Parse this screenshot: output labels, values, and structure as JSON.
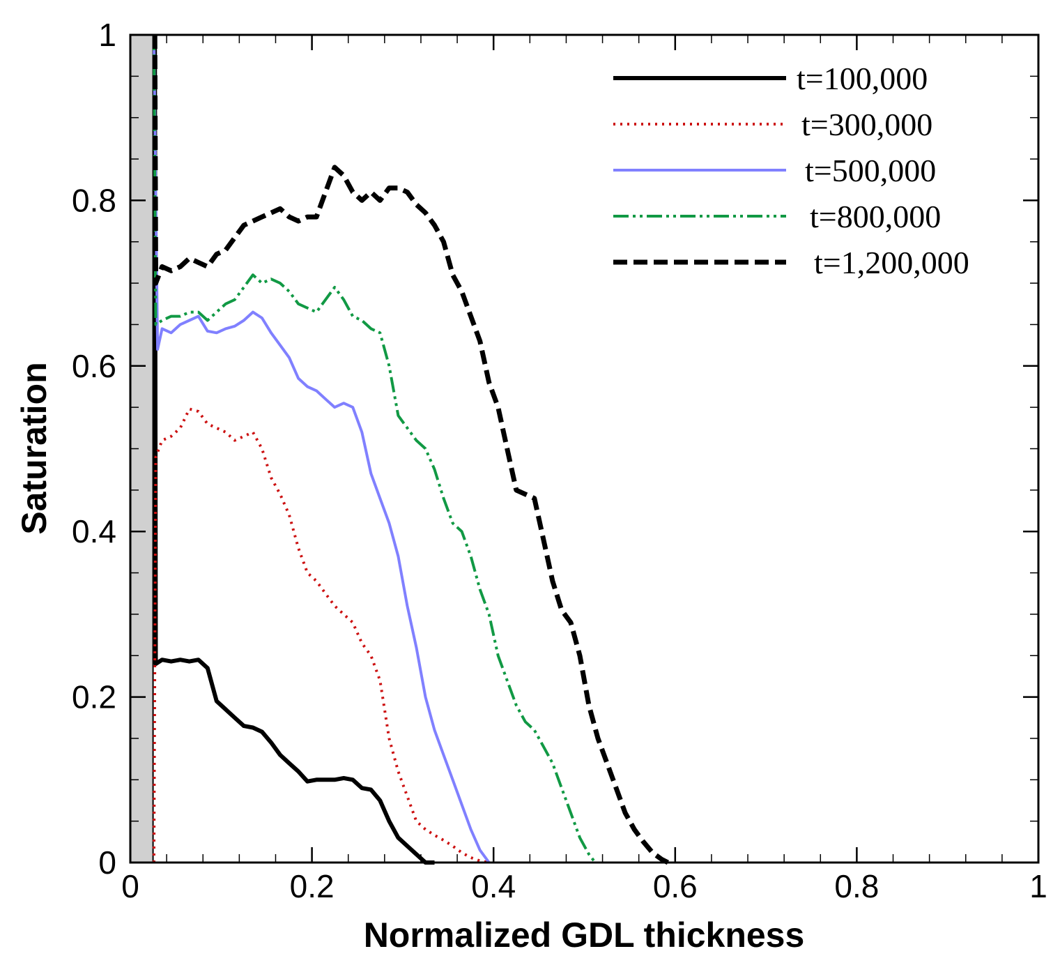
{
  "chart_data": {
    "type": "line",
    "title": "",
    "xlabel": "Normalized GDL thickness",
    "ylabel": "Saturation",
    "xlim": [
      0,
      1
    ],
    "ylim": [
      0,
      1
    ],
    "x_ticks": [
      "0",
      "0.2",
      "0.4",
      "0.6",
      "0.8",
      "1"
    ],
    "y_ticks": [
      "0",
      "0.2",
      "0.4",
      "0.6",
      "0.8",
      "1"
    ],
    "shaded_region": {
      "x_from": 0.0,
      "x_to": 0.025,
      "color": "#d0d0d0"
    },
    "legend_position": "top-right",
    "series": [
      {
        "name": "t=100,000",
        "color": "#000000",
        "style": "solid",
        "x": [
          0.027,
          0.028,
          0.035,
          0.045,
          0.055,
          0.065,
          0.075,
          0.085,
          0.095,
          0.105,
          0.115,
          0.125,
          0.135,
          0.145,
          0.155,
          0.165,
          0.175,
          0.185,
          0.195,
          0.205,
          0.215,
          0.225,
          0.235,
          0.245,
          0.255,
          0.265,
          0.275,
          0.285,
          0.295,
          0.305,
          0.315,
          0.325,
          0.335
        ],
        "y": [
          1.0,
          0.24,
          0.245,
          0.243,
          0.245,
          0.243,
          0.245,
          0.235,
          0.195,
          0.185,
          0.175,
          0.165,
          0.163,
          0.158,
          0.145,
          0.13,
          0.12,
          0.11,
          0.098,
          0.1,
          0.1,
          0.1,
          0.102,
          0.1,
          0.09,
          0.088,
          0.075,
          0.05,
          0.03,
          0.02,
          0.01,
          0.0,
          0.0
        ]
      },
      {
        "name": "t=300,000",
        "color": "#cc1111",
        "style": "dotted",
        "x": [
          0.026,
          0.028,
          0.035,
          0.045,
          0.055,
          0.065,
          0.075,
          0.085,
          0.095,
          0.105,
          0.115,
          0.125,
          0.135,
          0.145,
          0.155,
          0.165,
          0.175,
          0.185,
          0.195,
          0.205,
          0.215,
          0.225,
          0.235,
          0.245,
          0.255,
          0.265,
          0.275,
          0.285,
          0.295,
          0.305,
          0.315,
          0.325,
          0.335,
          0.345,
          0.355,
          0.365,
          0.375,
          0.385,
          0.395
        ],
        "y": [
          0.0,
          0.49,
          0.51,
          0.515,
          0.525,
          0.548,
          0.545,
          0.53,
          0.525,
          0.52,
          0.51,
          0.515,
          0.52,
          0.5,
          0.465,
          0.445,
          0.42,
          0.38,
          0.35,
          0.34,
          0.325,
          0.31,
          0.3,
          0.29,
          0.265,
          0.25,
          0.22,
          0.15,
          0.11,
          0.08,
          0.05,
          0.04,
          0.033,
          0.027,
          0.02,
          0.012,
          0.006,
          0.002,
          0.0
        ]
      },
      {
        "name": "t=500,000",
        "color": "#8080ff",
        "style": "solid",
        "x": [
          0.026,
          0.03,
          0.035,
          0.045,
          0.055,
          0.065,
          0.075,
          0.085,
          0.095,
          0.105,
          0.115,
          0.125,
          0.135,
          0.145,
          0.155,
          0.165,
          0.175,
          0.185,
          0.195,
          0.205,
          0.215,
          0.225,
          0.235,
          0.245,
          0.255,
          0.265,
          0.275,
          0.285,
          0.295,
          0.305,
          0.315,
          0.325,
          0.335,
          0.345,
          0.355,
          0.365,
          0.375,
          0.385,
          0.395
        ],
        "y": [
          1.0,
          0.62,
          0.645,
          0.64,
          0.65,
          0.655,
          0.66,
          0.642,
          0.64,
          0.645,
          0.648,
          0.655,
          0.665,
          0.658,
          0.64,
          0.625,
          0.61,
          0.585,
          0.575,
          0.57,
          0.56,
          0.55,
          0.555,
          0.55,
          0.52,
          0.47,
          0.44,
          0.41,
          0.37,
          0.31,
          0.26,
          0.2,
          0.16,
          0.13,
          0.1,
          0.07,
          0.04,
          0.015,
          0.0
        ]
      },
      {
        "name": "t=800,000",
        "color": "#119944",
        "style": "dash-dot-dot",
        "x": [
          0.026,
          0.028,
          0.035,
          0.045,
          0.055,
          0.065,
          0.075,
          0.085,
          0.095,
          0.105,
          0.115,
          0.125,
          0.135,
          0.145,
          0.155,
          0.165,
          0.175,
          0.185,
          0.195,
          0.205,
          0.215,
          0.225,
          0.235,
          0.245,
          0.255,
          0.265,
          0.275,
          0.285,
          0.295,
          0.305,
          0.315,
          0.325,
          0.335,
          0.345,
          0.355,
          0.365,
          0.375,
          0.385,
          0.395,
          0.405,
          0.415,
          0.425,
          0.435,
          0.445,
          0.455,
          0.465,
          0.475,
          0.485,
          0.495,
          0.505,
          0.512
        ],
        "y": [
          1.0,
          0.65,
          0.655,
          0.66,
          0.66,
          0.665,
          0.665,
          0.655,
          0.665,
          0.675,
          0.68,
          0.695,
          0.71,
          0.7,
          0.705,
          0.7,
          0.69,
          0.675,
          0.67,
          0.665,
          0.68,
          0.695,
          0.68,
          0.66,
          0.655,
          0.645,
          0.64,
          0.6,
          0.54,
          0.525,
          0.51,
          0.5,
          0.475,
          0.44,
          0.41,
          0.4,
          0.37,
          0.33,
          0.3,
          0.25,
          0.22,
          0.19,
          0.17,
          0.16,
          0.14,
          0.12,
          0.09,
          0.06,
          0.03,
          0.01,
          0.0
        ]
      },
      {
        "name": "t=1,200,000",
        "color": "#000000",
        "style": "dashed",
        "x": [
          0.027,
          0.028,
          0.035,
          0.045,
          0.055,
          0.065,
          0.075,
          0.085,
          0.095,
          0.105,
          0.115,
          0.125,
          0.135,
          0.145,
          0.155,
          0.165,
          0.175,
          0.185,
          0.195,
          0.205,
          0.215,
          0.225,
          0.235,
          0.245,
          0.255,
          0.265,
          0.275,
          0.285,
          0.295,
          0.305,
          0.315,
          0.325,
          0.335,
          0.345,
          0.355,
          0.365,
          0.375,
          0.385,
          0.395,
          0.405,
          0.415,
          0.425,
          0.435,
          0.445,
          0.455,
          0.465,
          0.475,
          0.485,
          0.495,
          0.505,
          0.515,
          0.525,
          0.535,
          0.545,
          0.555,
          0.565,
          0.575,
          0.585,
          0.592
        ],
        "y": [
          1.0,
          0.7,
          0.72,
          0.715,
          0.72,
          0.73,
          0.725,
          0.72,
          0.735,
          0.74,
          0.755,
          0.77,
          0.775,
          0.78,
          0.785,
          0.79,
          0.78,
          0.775,
          0.78,
          0.78,
          0.81,
          0.84,
          0.83,
          0.81,
          0.8,
          0.81,
          0.8,
          0.815,
          0.815,
          0.81,
          0.795,
          0.785,
          0.77,
          0.75,
          0.71,
          0.69,
          0.66,
          0.63,
          0.58,
          0.55,
          0.5,
          0.45,
          0.445,
          0.44,
          0.39,
          0.34,
          0.305,
          0.29,
          0.25,
          0.19,
          0.15,
          0.12,
          0.09,
          0.06,
          0.04,
          0.025,
          0.012,
          0.004,
          0.0
        ]
      }
    ]
  }
}
